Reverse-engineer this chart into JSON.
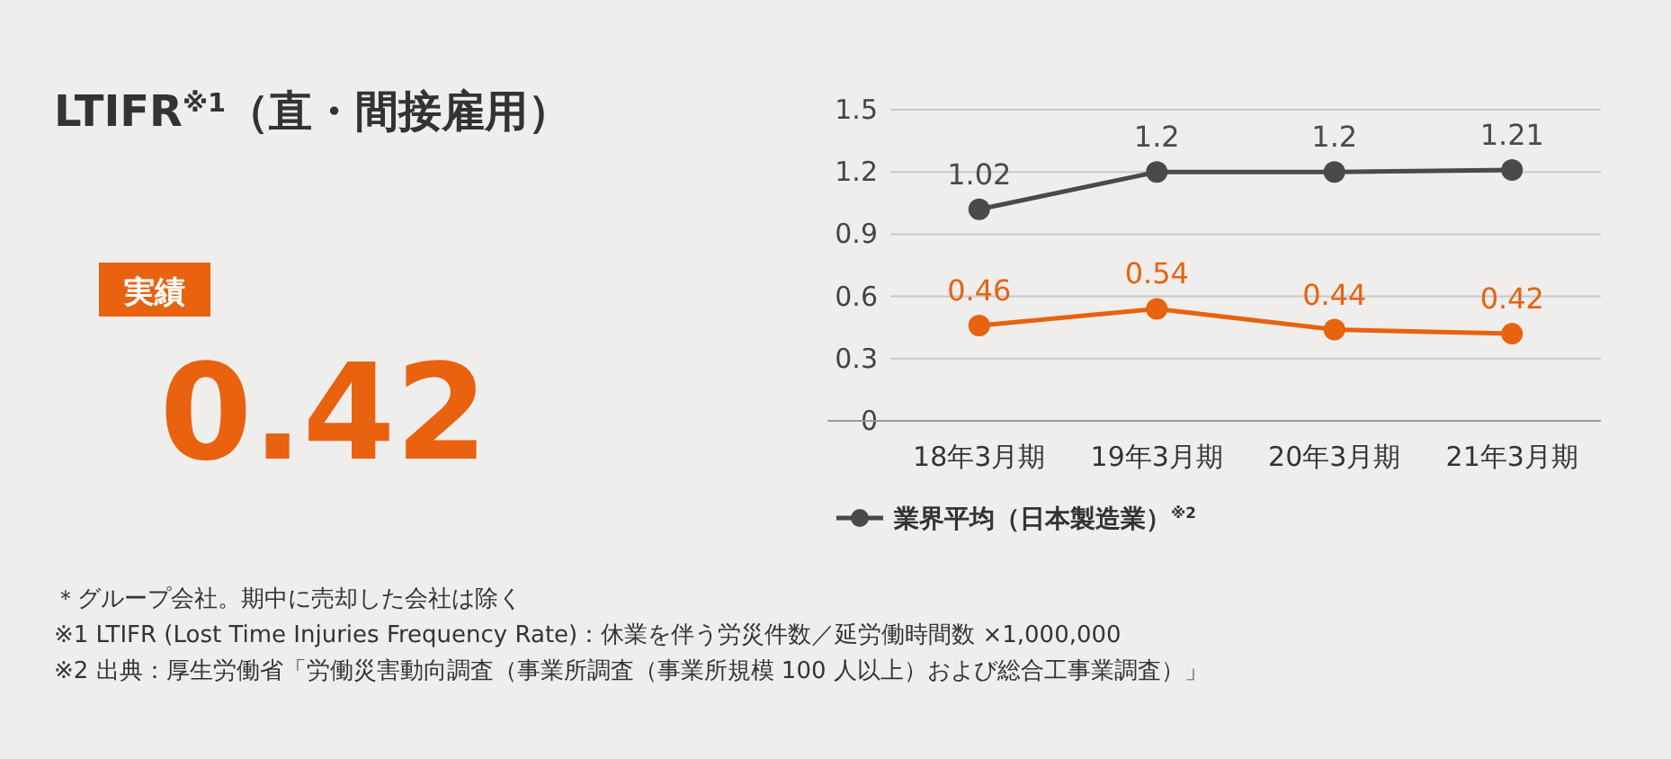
{
  "chart_data": [
    {
      "type": "other",
      "title": "LTIFR$^{※1}$（直・間接雇用）",
      "annotations": [
        "実績",
        "0.42"
      ]
    },
    {
      "type": "line",
      "categories": [
        "18年3月期",
        "19年3月期",
        "20年3月期",
        "21年3月期"
      ],
      "series": [
        {
          "color": "#e8620f",
          "values": [
            0.46,
            0.54,
            0.44,
            0.42
          ]
        },
        {
          "name": "業界平均（日本製造業）$^{※2}$",
          "color": "#4a4a4a",
          "values": [
            1.02,
            1.2,
            1.2,
            1.21
          ]
        }
      ],
      "ylim": [
        0,
        1.5
      ],
      "yticks": [
        0,
        0.3,
        0.6,
        0.9,
        1.2,
        1.5
      ],
      "grid": "y",
      "data_labels": true,
      "marker": "circle",
      "legend": "bottom left",
      "annotations": [
        "＊グループ会社。期中に売却した会社は除く",
        "※1 LTIFR (Lost Time Injuries Frequency Rate)：休業を伴う労災件数／延労働時間数 ×1,000,000",
        "※2 出典：厚生労働省「労働災害動向調査（事業所調査（事業所規模 100 人以上）および総合工事業調査）」"
      ]
    }
  ]
}
